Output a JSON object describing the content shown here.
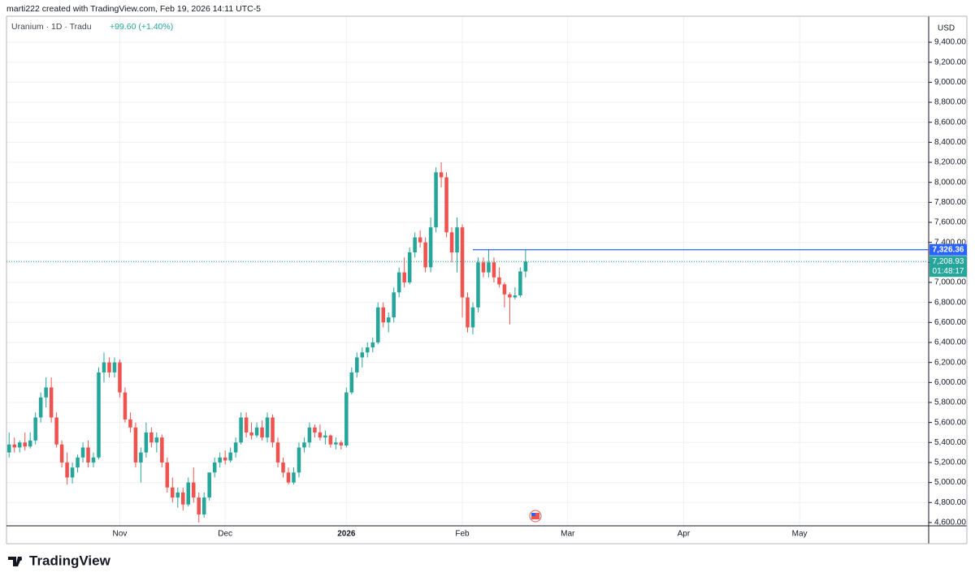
{
  "header": {
    "credit": "marti222 created with TradingView.com, Feb 19, 2026 14:11 UTC-5",
    "symbol": "Uranium · 1D · Tradu",
    "change": "+99.60 (+1.40%)"
  },
  "chart_data": {
    "type": "candlestick",
    "currency": "USD",
    "categories": [
      null,
      null,
      null,
      null,
      null,
      null,
      null,
      null,
      null,
      null,
      null,
      null,
      null,
      null,
      null,
      null,
      null,
      null,
      null,
      null,
      null,
      "Nov",
      null,
      null,
      null,
      null,
      null,
      null,
      null,
      null,
      null,
      null,
      null,
      null,
      null,
      null,
      null,
      null,
      null,
      null,
      null,
      "Dec",
      null,
      null,
      null,
      null,
      null,
      null,
      null,
      null,
      null,
      null,
      null,
      null,
      null,
      null,
      null,
      null,
      null,
      null,
      null,
      null,
      null,
      null,
      "2026",
      null,
      null,
      null,
      null,
      null,
      null,
      null,
      null,
      null,
      null,
      null,
      null,
      null,
      null,
      null,
      null,
      null,
      null,
      null,
      null,
      null,
      "Feb",
      null,
      null,
      null,
      null,
      null,
      null,
      null,
      null,
      null,
      null,
      null,
      null,
      null,
      null,
      null,
      null,
      null,
      null,
      null,
      "Mar",
      null,
      null,
      null,
      null,
      null,
      null,
      null,
      null,
      null,
      null,
      null,
      null,
      null,
      null,
      null,
      null,
      null,
      null,
      null,
      null,
      null,
      "Apr",
      null,
      null,
      null,
      null,
      null,
      null,
      null,
      null,
      null,
      null,
      null,
      null,
      null,
      null,
      null,
      null,
      null,
      null,
      null,
      null,
      null,
      "May",
      null,
      null,
      null,
      null,
      null,
      null,
      null,
      null,
      null,
      null,
      null,
      null,
      null,
      null,
      null,
      null,
      null,
      null,
      null,
      null,
      null,
      null,
      null,
      null
    ],
    "open": [
      5300,
      5380,
      5350,
      5400,
      5360,
      5420,
      5650,
      5850,
      5950,
      5650,
      5380,
      5200,
      5050,
      5150,
      5250,
      5350,
      5200,
      5250,
      6100,
      6200,
      6100,
      6200,
      5900,
      5630,
      5550,
      5200,
      5300,
      5500,
      5400,
      5450,
      5200,
      4950,
      4850,
      4900,
      4780,
      5000,
      4850,
      4680,
      4850,
      5100,
      5200,
      5250,
      5220,
      5300,
      5400,
      5650,
      5500,
      5470,
      5550,
      5450,
      5650,
      5400,
      5200,
      5100,
      5000,
      5100,
      5350,
      5400,
      5550,
      5500,
      5450,
      5470,
      5380,
      5400,
      5370,
      5900,
      6100,
      6250,
      6300,
      6350,
      6400,
      6750,
      6600,
      6650,
      6900,
      7100,
      7000,
      7300,
      7450,
      7400,
      7150,
      7550,
      8100,
      8050,
      7500,
      7300,
      7550,
      6850,
      6550,
      6750,
      7200,
      7100,
      7200,
      7050,
      6980,
      6880,
      6850,
      6870,
      7109.33,
      null,
      null,
      null,
      null,
      null,
      null,
      null,
      null,
      null,
      null,
      null,
      null,
      null,
      null,
      null,
      null,
      null,
      null,
      null,
      null,
      null,
      null,
      null,
      null,
      null,
      null,
      null,
      null,
      null,
      null,
      null,
      null,
      null,
      null,
      null,
      null,
      null,
      null,
      null,
      null,
      null,
      null,
      null,
      null,
      null,
      null,
      null,
      null,
      null,
      null,
      null,
      null,
      null,
      null,
      null,
      null,
      null,
      null,
      null,
      null,
      null,
      null,
      null,
      null,
      null,
      null,
      null,
      null,
      null,
      null,
      null,
      null,
      null,
      null,
      null,
      null
    ],
    "high": [
      5500,
      5450,
      5420,
      5500,
      5500,
      5700,
      5900,
      6050,
      6050,
      5700,
      5420,
      5300,
      5200,
      5280,
      5400,
      5420,
      5300,
      6150,
      6300,
      6250,
      6250,
      6230,
      5950,
      5700,
      5600,
      5350,
      5600,
      5550,
      5500,
      5480,
      5250,
      5050,
      4950,
      4950,
      5050,
      5150,
      4900,
      4900,
      5100,
      5250,
      5300,
      5320,
      5350,
      5450,
      5700,
      5700,
      5600,
      5600,
      5620,
      5700,
      5680,
      5450,
      5250,
      5150,
      5150,
      5400,
      5450,
      5600,
      5580,
      5580,
      5520,
      5480,
      5450,
      5420,
      5950,
      6150,
      6300,
      6350,
      6400,
      6450,
      6800,
      6800,
      6700,
      6950,
      7150,
      7250,
      7350,
      7500,
      7520,
      7450,
      7650,
      8150,
      8200,
      8100,
      7550,
      7650,
      7580,
      6900,
      6800,
      7250,
      7250,
      7330,
      7250,
      7150,
      7000,
      6900,
      6950,
      7150,
      7326,
      null,
      null,
      null,
      null,
      null,
      null,
      null,
      null,
      null,
      null,
      null,
      null,
      null,
      null,
      null,
      null,
      null,
      null,
      null,
      null,
      null,
      null,
      null,
      null,
      null,
      null,
      null,
      null,
      null,
      null,
      null,
      null,
      null,
      null,
      null,
      null,
      null,
      null,
      null,
      null,
      null,
      null,
      null,
      null,
      null,
      null,
      null,
      null,
      null,
      null,
      null,
      null,
      null,
      null,
      null,
      null,
      null,
      null,
      null,
      null,
      null,
      null,
      null,
      null,
      null,
      null,
      null,
      null,
      null,
      null,
      null,
      null,
      null,
      null,
      null,
      null
    ],
    "low": [
      5250,
      5300,
      5300,
      5320,
      5340,
      5380,
      5600,
      5750,
      5600,
      5350,
      5150,
      4980,
      4990,
      5100,
      5200,
      5150,
      5150,
      5230,
      6000,
      6050,
      6050,
      5850,
      5600,
      5500,
      5150,
      5000,
      5250,
      5350,
      5300,
      5150,
      4900,
      4800,
      4750,
      4720,
      4760,
      4800,
      4600,
      4650,
      4820,
      5050,
      5150,
      5180,
      5200,
      5250,
      5380,
      5450,
      5430,
      5450,
      5420,
      5400,
      5350,
      5150,
      5050,
      4980,
      4980,
      5050,
      5300,
      5350,
      5450,
      5420,
      5380,
      5350,
      5330,
      5330,
      5350,
      5880,
      6050,
      6150,
      6250,
      6300,
      6380,
      6550,
      6500,
      6600,
      6850,
      6950,
      6980,
      7250,
      7350,
      7100,
      7100,
      7500,
      7950,
      7450,
      7200,
      7100,
      6650,
      6500,
      6480,
      6700,
      7050,
      7050,
      7000,
      6950,
      6750,
      6580,
      6830,
      6850,
      7050,
      null,
      null,
      null,
      null,
      null,
      null,
      null,
      null,
      null,
      null,
      null,
      null,
      null,
      null,
      null,
      null,
      null,
      null,
      null,
      null,
      null,
      null,
      null,
      null,
      null,
      null,
      null,
      null,
      null,
      null,
      null,
      null,
      null,
      null,
      null,
      null,
      null,
      null,
      null,
      null,
      null,
      null,
      null,
      null,
      null,
      null,
      null,
      null,
      null,
      null,
      null,
      null,
      null,
      null,
      null,
      null,
      null,
      null,
      null,
      null,
      null,
      null,
      null,
      null,
      null,
      null,
      null,
      null,
      null,
      null,
      null,
      null,
      null,
      null,
      null,
      null
    ],
    "close": [
      5380,
      5350,
      5400,
      5360,
      5420,
      5650,
      5850,
      5950,
      5650,
      5380,
      5200,
      5050,
      5150,
      5250,
      5350,
      5200,
      5250,
      6100,
      6200,
      6100,
      6200,
      5900,
      5630,
      5550,
      5200,
      5300,
      5500,
      5400,
      5450,
      5200,
      4950,
      4850,
      4900,
      4780,
      5000,
      4850,
      4680,
      4850,
      5100,
      5200,
      5250,
      5220,
      5300,
      5400,
      5650,
      5500,
      5470,
      5550,
      5450,
      5650,
      5400,
      5200,
      5100,
      5000,
      5100,
      5350,
      5400,
      5550,
      5500,
      5450,
      5470,
      5380,
      5400,
      5370,
      5900,
      6100,
      6250,
      6300,
      6350,
      6400,
      6750,
      6600,
      6650,
      6900,
      7100,
      7000,
      7300,
      7450,
      7400,
      7150,
      7550,
      8100,
      8050,
      7500,
      7300,
      7550,
      6850,
      6550,
      6750,
      7200,
      7100,
      7200,
      7050,
      6980,
      6880,
      6850,
      6870,
      7109.33,
      7208.93,
      null,
      null,
      null,
      null,
      null,
      null,
      null,
      null,
      null,
      null,
      null,
      null,
      null,
      null,
      null,
      null,
      null,
      null,
      null,
      null,
      null,
      null,
      null,
      null,
      null,
      null,
      null,
      null,
      null,
      null,
      null,
      null,
      null,
      null,
      null,
      null,
      null,
      null,
      null,
      null,
      null,
      null,
      null,
      null,
      null,
      null,
      null,
      null,
      null,
      null,
      null,
      null,
      null,
      null,
      null,
      null,
      null,
      null,
      null,
      null,
      null,
      null,
      null,
      null,
      null,
      null,
      null,
      null,
      null,
      null,
      null,
      null,
      null,
      null,
      null,
      null
    ],
    "up_color": "#26a69a",
    "down_color": "#ef5350",
    "ylim": [
      4567,
      9660
    ],
    "yticks": [
      {
        "value": 4600,
        "label": "4,600.00"
      },
      {
        "value": 4800,
        "label": "4,800.00"
      },
      {
        "value": 5000,
        "label": "5,000.00"
      },
      {
        "value": 5200,
        "label": "5,200.00"
      },
      {
        "value": 5400,
        "label": "5,400.00"
      },
      {
        "value": 5600,
        "label": "5,600.00"
      },
      {
        "value": 5800,
        "label": "5,800.00"
      },
      {
        "value": 6000,
        "label": "6,000.00"
      },
      {
        "value": 6200,
        "label": "6,200.00"
      },
      {
        "value": 6400,
        "label": "6,400.00"
      },
      {
        "value": 6600,
        "label": "6,600.00"
      },
      {
        "value": 6800,
        "label": "6,800.00"
      },
      {
        "value": 7000,
        "label": "7,000.00"
      },
      {
        "value": 7200,
        "label": "7,200.00"
      },
      {
        "value": 7400,
        "label": "7,400.00"
      },
      {
        "value": 7600,
        "label": "7,600.00"
      },
      {
        "value": 7800,
        "label": "7,800.00"
      },
      {
        "value": 8000,
        "label": "8,000.00"
      },
      {
        "value": 8200,
        "label": "8,200.00"
      },
      {
        "value": 8400,
        "label": "8,400.00"
      },
      {
        "value": 8600,
        "label": "8,600.00"
      },
      {
        "value": 8800,
        "label": "8,800.00"
      },
      {
        "value": 9000,
        "label": "9,000.00"
      },
      {
        "value": 9200,
        "label": "9,200.00"
      },
      {
        "value": 9400,
        "label": "9,400.00"
      }
    ],
    "grid": true,
    "price_line": {
      "value": 7326.36,
      "label": "7,326.36",
      "color": "#2962ff"
    },
    "last_price": {
      "value": 7208.93,
      "label": "7,208.93",
      "countdown": "01:48:17",
      "color": "#26a69a"
    }
  },
  "footer": {
    "brand": "TradingView"
  }
}
